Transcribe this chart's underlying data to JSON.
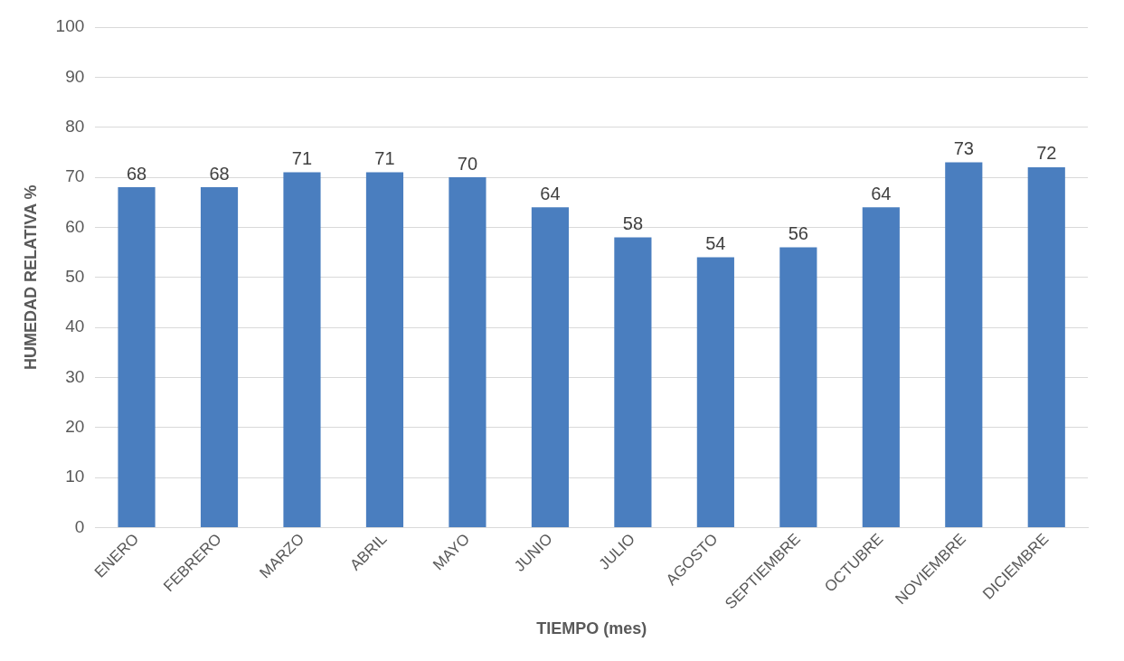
{
  "chart_data": {
    "type": "bar",
    "xlabel": "TIEMPO (mes)",
    "ylabel": "HUMEDAD RELATIVA %",
    "categories": [
      "ENERO",
      "FEBRERO",
      "MARZO",
      "ABRIL",
      "MAYO",
      "JUNIO",
      "JULIO",
      "AGOSTO",
      "SEPTIEMBRE",
      "OCTUBRE",
      "NOVIEMBRE",
      "DICIEMBRE"
    ],
    "values": [
      68,
      68,
      71,
      71,
      70,
      64,
      58,
      54,
      56,
      64,
      73,
      72
    ],
    "color": "#4a7ebf",
    "ylim": [
      0,
      100
    ],
    "yticks": [
      0,
      10,
      20,
      30,
      40,
      50,
      60,
      70,
      80,
      90,
      100
    ],
    "grid": "y",
    "data_labels": true
  }
}
